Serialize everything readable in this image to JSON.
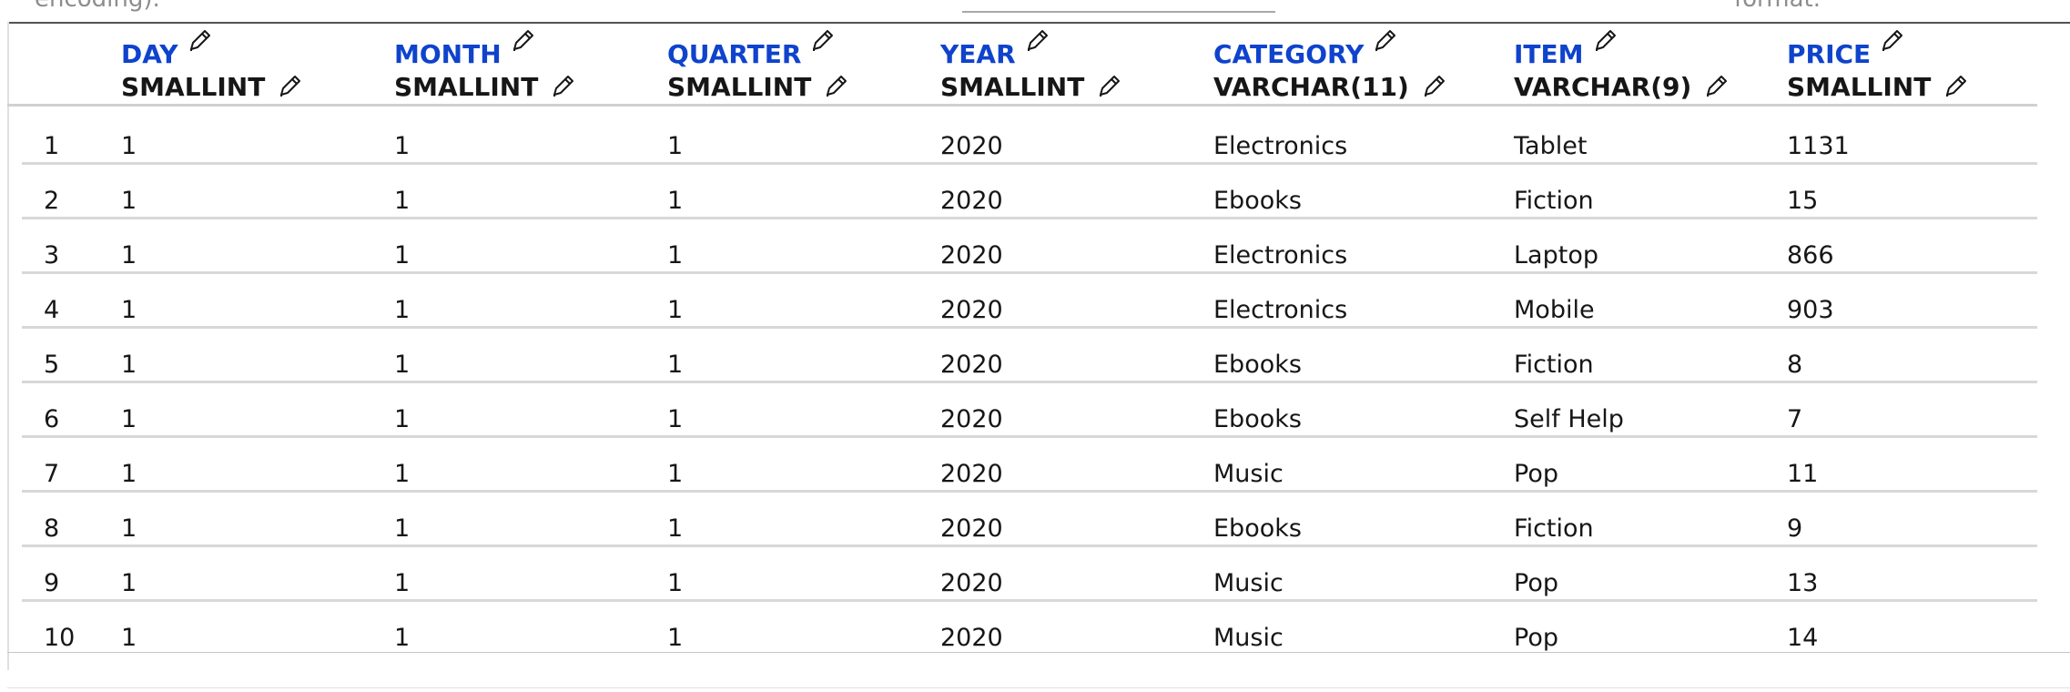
{
  "top_partial": {
    "left_text": "encoding).",
    "right_text": "format."
  },
  "columns": [
    {
      "name": "DAY",
      "type": "SMALLINT"
    },
    {
      "name": "MONTH",
      "type": "SMALLINT"
    },
    {
      "name": "QUARTER",
      "type": "SMALLINT"
    },
    {
      "name": "YEAR",
      "type": "SMALLINT"
    },
    {
      "name": "CATEGORY",
      "type": "VARCHAR(11)"
    },
    {
      "name": "ITEM",
      "type": "VARCHAR(9)"
    },
    {
      "name": "PRICE",
      "type": "SMALLINT"
    }
  ],
  "rows": [
    [
      "1",
      "1",
      "1",
      "1",
      "2020",
      "Electronics",
      "Tablet",
      "1131"
    ],
    [
      "2",
      "1",
      "1",
      "1",
      "2020",
      "Ebooks",
      "Fiction",
      "15"
    ],
    [
      "3",
      "1",
      "1",
      "1",
      "2020",
      "Electronics",
      "Laptop",
      "866"
    ],
    [
      "4",
      "1",
      "1",
      "1",
      "2020",
      "Electronics",
      "Mobile",
      "903"
    ],
    [
      "5",
      "1",
      "1",
      "1",
      "2020",
      "Ebooks",
      "Fiction",
      "8"
    ],
    [
      "6",
      "1",
      "1",
      "1",
      "2020",
      "Ebooks",
      "Self Help",
      "7"
    ],
    [
      "7",
      "1",
      "1",
      "1",
      "2020",
      "Music",
      "Pop",
      "11"
    ],
    [
      "8",
      "1",
      "1",
      "1",
      "2020",
      "Ebooks",
      "Fiction",
      "9"
    ],
    [
      "9",
      "1",
      "1",
      "1",
      "2020",
      "Music",
      "Pop",
      "13"
    ],
    [
      "10",
      "1",
      "1",
      "1",
      "2020",
      "Music",
      "Pop",
      "14"
    ]
  ]
}
